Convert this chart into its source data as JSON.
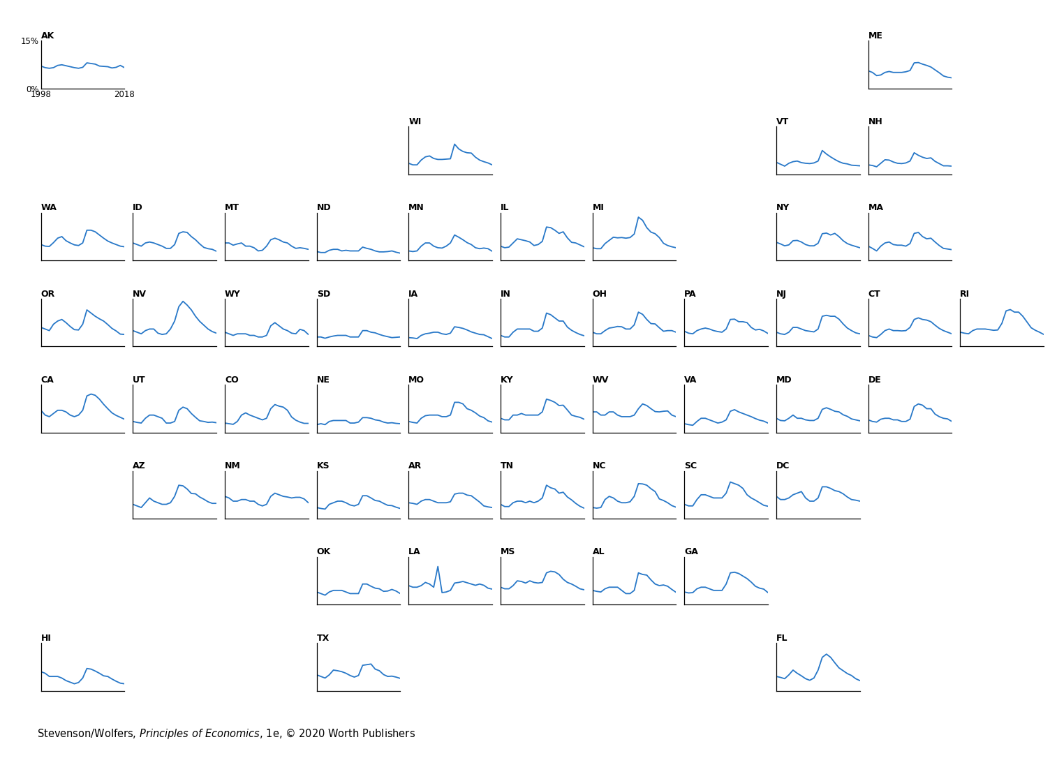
{
  "line_color": "#2878C8",
  "line_width": 1.3,
  "states_data": {
    "AK": [
      7.0,
      6.5,
      6.3,
      6.5,
      7.2,
      7.4,
      7.1,
      6.8,
      6.5,
      6.3,
      6.6,
      8.0,
      7.8,
      7.6,
      7.0,
      6.9,
      6.8,
      6.4,
      6.6,
      7.2,
      6.5
    ],
    "ME": [
      5.5,
      5.0,
      4.0,
      4.2,
      5.0,
      5.3,
      5.0,
      5.0,
      5.0,
      5.2,
      5.6,
      8.0,
      8.1,
      7.6,
      7.2,
      6.7,
      5.8,
      4.9,
      3.9,
      3.5,
      3.3
    ],
    "VT": [
      3.8,
      3.2,
      2.6,
      3.5,
      4.0,
      4.2,
      3.7,
      3.5,
      3.4,
      3.6,
      4.2,
      7.5,
      6.4,
      5.5,
      4.7,
      4.0,
      3.5,
      3.3,
      2.9,
      2.8,
      2.7
    ],
    "NH": [
      3.0,
      2.8,
      2.4,
      3.5,
      4.6,
      4.5,
      3.9,
      3.5,
      3.4,
      3.6,
      4.2,
      6.8,
      6.0,
      5.4,
      5.0,
      5.2,
      4.1,
      3.4,
      2.7,
      2.7,
      2.6
    ],
    "WI": [
      3.5,
      3.0,
      3.0,
      4.5,
      5.5,
      5.8,
      5.0,
      4.7,
      4.7,
      4.8,
      4.9,
      9.5,
      8.0,
      7.2,
      6.8,
      6.7,
      5.4,
      4.5,
      4.0,
      3.6,
      3.0
    ],
    "WA": [
      5.0,
      4.5,
      4.4,
      5.6,
      7.0,
      7.5,
      6.2,
      5.5,
      4.9,
      4.7,
      5.5,
      9.5,
      9.5,
      9.0,
      8.0,
      7.0,
      6.1,
      5.5,
      5.0,
      4.5,
      4.3
    ],
    "ID": [
      5.5,
      5.0,
      4.5,
      5.5,
      5.8,
      5.5,
      5.0,
      4.5,
      3.8,
      3.8,
      5.0,
      8.5,
      9.0,
      8.8,
      7.5,
      6.5,
      5.2,
      4.1,
      3.7,
      3.5,
      2.9
    ],
    "MT": [
      5.5,
      5.5,
      4.8,
      5.2,
      5.5,
      4.5,
      4.5,
      4.0,
      3.0,
      3.2,
      4.5,
      6.5,
      7.0,
      6.5,
      5.8,
      5.5,
      4.5,
      3.8,
      4.0,
      3.8,
      3.5
    ],
    "ND": [
      2.8,
      2.5,
      2.5,
      3.2,
      3.5,
      3.5,
      3.0,
      3.2,
      3.0,
      3.0,
      3.0,
      4.2,
      3.8,
      3.5,
      3.0,
      2.7,
      2.7,
      2.8,
      3.0,
      2.6,
      2.3
    ],
    "MN": [
      3.0,
      2.8,
      3.0,
      4.5,
      5.5,
      5.5,
      4.5,
      4.0,
      3.9,
      4.5,
      5.5,
      8.0,
      7.3,
      6.5,
      5.6,
      5.0,
      4.0,
      3.7,
      3.9,
      3.7,
      2.9
    ],
    "IL": [
      4.5,
      4.0,
      4.2,
      5.5,
      6.8,
      6.5,
      6.2,
      5.8,
      4.7,
      5.0,
      6.0,
      10.5,
      10.3,
      9.5,
      8.5,
      9.0,
      7.1,
      5.7,
      5.5,
      4.9,
      4.3
    ],
    "MI": [
      4.0,
      3.7,
      3.7,
      5.3,
      6.3,
      7.3,
      7.1,
      7.2,
      7.0,
      7.2,
      8.3,
      13.6,
      12.6,
      10.3,
      8.9,
      8.4,
      7.2,
      5.4,
      4.7,
      4.3,
      4.0
    ],
    "NY": [
      5.7,
      5.2,
      4.6,
      4.9,
      6.2,
      6.3,
      5.8,
      5.0,
      4.6,
      4.6,
      5.4,
      8.4,
      8.6,
      8.0,
      8.5,
      7.5,
      6.2,
      5.3,
      4.8,
      4.4,
      4.0
    ],
    "MA": [
      4.5,
      3.8,
      3.0,
      4.5,
      5.5,
      5.8,
      5.0,
      4.8,
      4.8,
      4.5,
      5.3,
      8.5,
      8.8,
      7.5,
      6.8,
      7.0,
      5.8,
      4.7,
      3.8,
      3.6,
      3.4
    ],
    "OR": [
      6.0,
      5.5,
      5.0,
      7.0,
      8.0,
      8.5,
      7.5,
      6.3,
      5.3,
      5.2,
      7.0,
      11.5,
      10.5,
      9.5,
      8.7,
      8.0,
      6.9,
      5.7,
      4.9,
      3.9,
      3.8
    ],
    "NV": [
      5.0,
      4.5,
      4.0,
      5.0,
      5.5,
      5.5,
      4.2,
      3.8,
      4.0,
      5.5,
      8.0,
      12.5,
      14.2,
      13.0,
      11.5,
      9.5,
      7.9,
      6.7,
      5.5,
      4.7,
      4.2
    ],
    "WY": [
      4.5,
      4.0,
      3.5,
      4.0,
      4.0,
      4.0,
      3.5,
      3.5,
      3.0,
      3.0,
      3.5,
      6.5,
      7.5,
      6.5,
      5.5,
      5.0,
      4.2,
      4.0,
      5.4,
      5.0,
      3.8
    ],
    "SD": [
      3.0,
      3.0,
      2.6,
      3.0,
      3.3,
      3.5,
      3.5,
      3.5,
      3.0,
      3.0,
      3.0,
      5.0,
      5.0,
      4.5,
      4.3,
      3.8,
      3.4,
      3.1,
      2.8,
      2.9,
      3.0
    ],
    "IA": [
      2.8,
      2.7,
      2.5,
      3.5,
      4.0,
      4.2,
      4.5,
      4.5,
      4.0,
      3.8,
      4.2,
      6.2,
      6.0,
      5.7,
      5.2,
      4.6,
      4.2,
      3.8,
      3.7,
      3.1,
      2.5
    ],
    "IN": [
      3.5,
      3.0,
      3.0,
      4.5,
      5.5,
      5.5,
      5.5,
      5.5,
      4.8,
      4.8,
      5.8,
      10.5,
      10.0,
      9.0,
      8.0,
      8.0,
      6.1,
      5.1,
      4.4,
      3.8,
      3.4
    ],
    "OH": [
      4.5,
      4.0,
      4.0,
      5.0,
      5.8,
      6.0,
      6.3,
      6.2,
      5.5,
      5.5,
      6.8,
      10.8,
      10.1,
      8.5,
      7.2,
      7.1,
      5.9,
      4.8,
      5.0,
      5.0,
      4.5
    ],
    "PA": [
      4.8,
      4.2,
      4.0,
      5.0,
      5.5,
      5.8,
      5.5,
      5.0,
      4.7,
      4.5,
      5.5,
      8.5,
      8.6,
      7.8,
      7.8,
      7.5,
      6.0,
      5.2,
      5.4,
      4.9,
      4.1
    ],
    "NJ": [
      4.5,
      4.0,
      3.8,
      4.5,
      6.0,
      6.0,
      5.5,
      5.0,
      4.8,
      4.6,
      5.5,
      9.5,
      9.8,
      9.5,
      9.5,
      8.6,
      7.1,
      5.8,
      5.0,
      4.3,
      4.0
    ],
    "CT": [
      3.5,
      3.0,
      2.8,
      3.8,
      5.0,
      5.5,
      5.0,
      5.0,
      4.9,
      5.0,
      6.0,
      8.5,
      9.0,
      8.5,
      8.3,
      7.8,
      6.7,
      5.7,
      5.0,
      4.5,
      4.0
    ],
    "RI": [
      4.5,
      4.2,
      4.0,
      5.0,
      5.5,
      5.5,
      5.5,
      5.3,
      5.1,
      5.2,
      7.3,
      11.2,
      11.6,
      10.8,
      10.8,
      9.5,
      7.7,
      5.9,
      5.1,
      4.5,
      3.8
    ],
    "CA": [
      7.0,
      5.5,
      5.0,
      6.0,
      7.0,
      7.0,
      6.5,
      5.5,
      5.0,
      5.5,
      7.0,
      11.5,
      12.1,
      11.7,
      10.5,
      8.9,
      7.5,
      6.2,
      5.4,
      4.8,
      4.2
    ],
    "UT": [
      3.5,
      3.2,
      3.0,
      4.5,
      5.5,
      5.5,
      5.0,
      4.5,
      3.0,
      3.0,
      3.5,
      7.0,
      8.0,
      7.5,
      6.0,
      4.8,
      3.7,
      3.5,
      3.2,
      3.3,
      3.1
    ],
    "CO": [
      3.0,
      2.8,
      2.6,
      3.5,
      5.5,
      6.2,
      5.5,
      5.0,
      4.5,
      4.0,
      4.5,
      7.5,
      8.8,
      8.3,
      8.0,
      7.0,
      4.9,
      3.9,
      3.3,
      2.9,
      2.9
    ],
    "NE": [
      2.5,
      2.8,
      2.5,
      3.5,
      3.8,
      3.8,
      3.8,
      3.8,
      3.0,
      3.0,
      3.3,
      4.7,
      4.7,
      4.5,
      4.0,
      3.8,
      3.3,
      3.0,
      3.1,
      2.9,
      2.8
    ],
    "MO": [
      3.5,
      3.2,
      3.0,
      4.5,
      5.3,
      5.5,
      5.5,
      5.5,
      5.0,
      5.0,
      5.5,
      9.5,
      9.5,
      9.0,
      7.5,
      7.0,
      6.2,
      5.2,
      4.7,
      3.7,
      3.3
    ],
    "KY": [
      4.5,
      4.0,
      4.0,
      5.5,
      5.5,
      6.0,
      5.5,
      5.5,
      5.5,
      5.5,
      6.5,
      10.5,
      10.1,
      9.5,
      8.5,
      8.6,
      7.1,
      5.5,
      5.1,
      4.8,
      4.2
    ],
    "WV": [
      6.5,
      6.5,
      5.5,
      5.5,
      6.5,
      6.5,
      5.5,
      5.0,
      5.0,
      5.0,
      5.5,
      7.5,
      9.0,
      8.5,
      7.5,
      6.6,
      6.5,
      6.7,
      6.8,
      5.5,
      5.0
    ],
    "VA": [
      2.8,
      2.5,
      2.3,
      3.5,
      4.5,
      4.5,
      4.0,
      3.5,
      3.0,
      3.3,
      4.0,
      6.7,
      7.2,
      6.5,
      6.0,
      5.5,
      5.0,
      4.4,
      3.9,
      3.6,
      3.0
    ],
    "MD": [
      4.5,
      3.8,
      3.7,
      4.5,
      5.5,
      4.5,
      4.5,
      4.0,
      3.8,
      3.8,
      4.5,
      7.3,
      7.8,
      7.3,
      6.7,
      6.5,
      5.6,
      5.1,
      4.3,
      4.0,
      3.7
    ],
    "DE": [
      4.0,
      3.5,
      3.3,
      4.2,
      4.5,
      4.5,
      4.0,
      4.0,
      3.5,
      3.5,
      4.2,
      8.2,
      9.0,
      8.6,
      7.5,
      7.5,
      5.8,
      5.0,
      4.5,
      4.3,
      3.5
    ],
    "AZ": [
      4.5,
      4.0,
      3.5,
      5.0,
      6.5,
      5.5,
      5.0,
      4.5,
      4.5,
      5.0,
      7.0,
      10.5,
      10.3,
      9.3,
      7.9,
      7.8,
      6.8,
      6.1,
      5.3,
      4.8,
      4.8
    ],
    "NM": [
      7.0,
      6.5,
      5.5,
      5.5,
      6.0,
      6.0,
      5.5,
      5.5,
      4.5,
      4.0,
      4.5,
      7.0,
      8.0,
      7.5,
      7.0,
      6.8,
      6.5,
      6.7,
      6.7,
      6.2,
      5.0
    ],
    "KS": [
      3.5,
      3.2,
      3.0,
      4.5,
      5.0,
      5.5,
      5.5,
      5.0,
      4.3,
      4.0,
      4.5,
      7.2,
      7.2,
      6.5,
      5.7,
      5.5,
      4.8,
      4.2,
      4.1,
      3.6,
      3.2
    ],
    "AR": [
      5.0,
      4.8,
      4.5,
      5.5,
      6.0,
      6.0,
      5.5,
      5.0,
      5.0,
      5.0,
      5.3,
      7.7,
      8.0,
      8.0,
      7.4,
      7.2,
      6.2,
      5.2,
      4.0,
      3.7,
      3.5
    ],
    "TN": [
      4.5,
      3.8,
      3.8,
      5.0,
      5.5,
      5.5,
      5.0,
      5.5,
      5.0,
      5.5,
      6.5,
      10.5,
      9.7,
      9.3,
      8.0,
      8.3,
      6.8,
      5.9,
      4.8,
      3.9,
      3.3
    ],
    "NC": [
      3.5,
      3.3,
      3.5,
      6.0,
      7.0,
      6.5,
      5.5,
      5.0,
      5.0,
      5.3,
      7.0,
      11.0,
      10.9,
      10.5,
      9.4,
      8.5,
      6.2,
      5.7,
      5.0,
      4.1,
      3.6
    ],
    "SC": [
      4.5,
      4.0,
      4.0,
      6.0,
      7.5,
      7.5,
      7.0,
      6.5,
      6.5,
      6.5,
      8.0,
      11.5,
      11.0,
      10.5,
      9.5,
      7.5,
      6.5,
      5.8,
      5.0,
      4.2,
      3.9
    ],
    "DC": [
      7.0,
      6.0,
      6.0,
      6.5,
      7.5,
      8.0,
      8.5,
      6.5,
      5.5,
      5.5,
      6.5,
      10.0,
      10.0,
      9.5,
      8.8,
      8.5,
      7.8,
      6.8,
      6.0,
      5.8,
      5.5
    ],
    "OK": [
      4.0,
      3.5,
      3.0,
      4.0,
      4.5,
      4.5,
      4.5,
      4.0,
      3.5,
      3.5,
      3.5,
      6.5,
      6.5,
      5.8,
      5.2,
      5.0,
      4.2,
      4.3,
      4.8,
      4.3,
      3.5
    ],
    "LA": [
      6.0,
      5.5,
      5.5,
      6.0,
      7.0,
      6.5,
      5.5,
      12.0,
      3.8,
      4.0,
      4.5,
      6.8,
      7.0,
      7.3,
      6.9,
      6.5,
      6.1,
      6.5,
      6.1,
      5.2,
      4.9
    ],
    "MS": [
      5.5,
      5.0,
      5.0,
      6.0,
      7.5,
      7.3,
      6.8,
      7.5,
      7.0,
      6.8,
      7.0,
      10.0,
      10.5,
      10.3,
      9.5,
      8.0,
      7.0,
      6.5,
      5.8,
      5.0,
      4.7
    ],
    "AL": [
      4.5,
      4.2,
      4.0,
      5.0,
      5.5,
      5.5,
      5.5,
      4.5,
      3.5,
      3.5,
      4.5,
      10.0,
      9.5,
      9.3,
      7.8,
      6.5,
      6.0,
      6.2,
      5.8,
      4.8,
      3.9
    ],
    "GA": [
      4.0,
      3.7,
      3.8,
      5.0,
      5.5,
      5.5,
      5.0,
      4.5,
      4.5,
      4.5,
      6.5,
      10.0,
      10.2,
      9.8,
      9.0,
      8.2,
      7.1,
      5.8,
      5.2,
      4.9,
      3.8
    ],
    "HI": [
      6.0,
      5.5,
      4.5,
      4.5,
      4.5,
      4.0,
      3.2,
      2.7,
      2.2,
      2.6,
      4.0,
      7.0,
      6.8,
      6.2,
      5.5,
      4.7,
      4.5,
      3.7,
      3.0,
      2.4,
      2.2
    ],
    "TX": [
      5.0,
      4.5,
      4.0,
      5.0,
      6.5,
      6.3,
      6.0,
      5.5,
      4.8,
      4.3,
      4.8,
      8.0,
      8.2,
      8.4,
      6.8,
      6.3,
      5.1,
      4.5,
      4.6,
      4.3,
      3.9
    ],
    "FL": [
      4.5,
      4.2,
      3.8,
      5.0,
      6.5,
      5.5,
      4.7,
      3.8,
      3.3,
      4.0,
      6.5,
      10.5,
      11.5,
      10.5,
      8.8,
      7.2,
      6.3,
      5.4,
      4.8,
      3.8,
      3.2
    ]
  },
  "layout": [
    [
      "AK",
      null,
      null,
      null,
      null,
      null,
      null,
      null,
      null,
      "ME"
    ],
    [
      null,
      null,
      null,
      null,
      "WI",
      null,
      null,
      null,
      "VT",
      "NH"
    ],
    [
      "WA",
      "ID",
      "MT",
      "ND",
      "MN",
      "IL",
      "MI",
      null,
      "NY",
      "MA"
    ],
    [
      "OR",
      "NV",
      "WY",
      "SD",
      "IA",
      "IN",
      "OH",
      "PA",
      "NJ",
      "CT",
      "RI"
    ],
    [
      "CA",
      "UT",
      "CO",
      "NE",
      "MO",
      "KY",
      "WV",
      "VA",
      "MD",
      "DE"
    ],
    [
      null,
      "AZ",
      "NM",
      "KS",
      "AR",
      "TN",
      "NC",
      "SC",
      "DC"
    ],
    [
      null,
      null,
      null,
      "OK",
      "LA",
      "MS",
      "AL",
      "GA"
    ],
    [
      "HI",
      null,
      null,
      "TX",
      null,
      null,
      null,
      null,
      "FL"
    ]
  ],
  "ncols": 11,
  "nrows": 8
}
